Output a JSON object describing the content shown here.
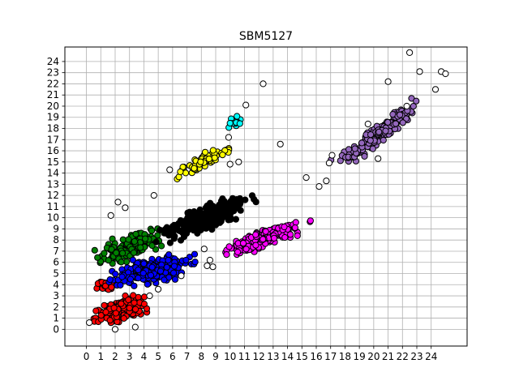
{
  "chart_data": {
    "type": "scatter",
    "title": "SBM5127",
    "xlabel": "",
    "ylabel": "",
    "xlim": [
      -1.5,
      26.5
    ],
    "ylim": [
      -1.5,
      25.3
    ],
    "x_ticks": [
      0,
      1,
      2,
      3,
      4,
      5,
      6,
      7,
      8,
      9,
      10,
      11,
      12,
      13,
      14,
      15,
      16,
      17,
      18,
      19,
      20,
      21,
      22,
      23,
      24
    ],
    "y_ticks": [
      0,
      1,
      2,
      3,
      4,
      5,
      6,
      7,
      8,
      9,
      10,
      11,
      12,
      13,
      14,
      15,
      16,
      17,
      18,
      19,
      20,
      21,
      22,
      23,
      24
    ],
    "grid": true,
    "legend": "none",
    "marker_edge_color": "#000000",
    "clusters": [
      {
        "color": "#ff0000",
        "label": "red",
        "center": [
          2.5,
          1.8
        ],
        "spread": [
          1.5,
          0.9
        ],
        "tilt": 0.35,
        "count": 190
      },
      {
        "color": "#ff0000",
        "label": "red",
        "center": [
          1.3,
          3.9
        ],
        "spread": [
          0.5,
          0.6
        ],
        "tilt": 0.0,
        "count": 30
      },
      {
        "color": "#008000",
        "label": "green",
        "center": [
          3.1,
          7.4
        ],
        "spread": [
          1.9,
          1.0
        ],
        "tilt": 0.55,
        "count": 150
      },
      {
        "color": "#0000ff",
        "label": "blue",
        "center": [
          4.5,
          5.3
        ],
        "spread": [
          2.3,
          1.1
        ],
        "tilt": 0.3,
        "count": 260
      },
      {
        "color": "#000000",
        "label": "black",
        "center": [
          8.3,
          10.0
        ],
        "spread": [
          2.6,
          1.0
        ],
        "tilt": 0.6,
        "count": 320
      },
      {
        "color": "#ffff00",
        "label": "yellow",
        "center": [
          8.2,
          15.1
        ],
        "spread": [
          2.0,
          0.6
        ],
        "tilt": 0.7,
        "count": 80
      },
      {
        "color": "#00ffff",
        "label": "cyan",
        "center": [
          10.4,
          18.5
        ],
        "spread": [
          0.5,
          0.6
        ],
        "tilt": 0.4,
        "count": 14
      },
      {
        "color": "#ff00ff",
        "label": "magenta",
        "center": [
          12.4,
          8.2
        ],
        "spread": [
          2.6,
          0.7
        ],
        "tilt": 0.52,
        "count": 200
      },
      {
        "color": "#9467bd",
        "label": "purple",
        "center": [
          20.4,
          17.6
        ],
        "spread": [
          2.9,
          0.65
        ],
        "tilt": 1.05,
        "count": 220
      }
    ],
    "outliers": [
      [
        22.5,
        24.8
      ],
      [
        24.7,
        23.1
      ],
      [
        25.0,
        22.9
      ],
      [
        23.2,
        23.1
      ],
      [
        12.3,
        22.0
      ],
      [
        11.1,
        20.1
      ],
      [
        21.0,
        22.2
      ],
      [
        22.3,
        20.0
      ],
      [
        24.3,
        21.5
      ],
      [
        13.5,
        16.6
      ],
      [
        1.7,
        10.2
      ],
      [
        2.7,
        10.9
      ],
      [
        2.2,
        11.4
      ],
      [
        4.7,
        12.0
      ],
      [
        5.8,
        14.3
      ],
      [
        15.3,
        13.6
      ],
      [
        16.2,
        12.8
      ],
      [
        16.7,
        13.3
      ],
      [
        16.9,
        14.9
      ],
      [
        17.1,
        15.6
      ],
      [
        8.6,
        6.2
      ],
      [
        8.8,
        5.6
      ],
      [
        8.4,
        5.7
      ],
      [
        8.2,
        7.2
      ],
      [
        10.6,
        15.0
      ],
      [
        4.4,
        3.0
      ],
      [
        6.6,
        4.8
      ],
      [
        5.0,
        3.6
      ],
      [
        0.2,
        0.6
      ],
      [
        3.4,
        0.2
      ],
      [
        2.0,
        0.0
      ],
      [
        9.9,
        17.2
      ],
      [
        10.0,
        14.8
      ],
      [
        19.6,
        18.4
      ],
      [
        20.3,
        15.3
      ]
    ]
  }
}
